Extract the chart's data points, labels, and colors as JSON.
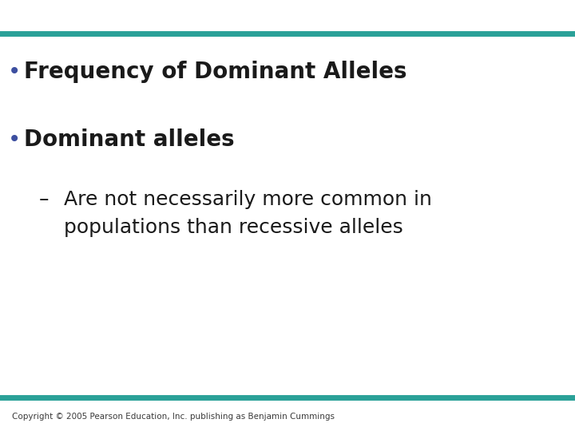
{
  "background_color": "#ffffff",
  "top_bar_color": "#2aa198",
  "bottom_bar_color": "#2aa198",
  "bullet1": "Frequency of Dominant Alleles",
  "bullet2": "Dominant alleles",
  "sub_bullet_line1": "Are not necessarily more common in",
  "sub_bullet_line2": "populations than recessive alleles",
  "bullet_color": "#1a1a1a",
  "bullet_dot_color": "#3d4fa0",
  "bullet_fontsize": 20,
  "sub_bullet_fontsize": 18,
  "copyright_text": "Copyright © 2005 Pearson Education, Inc. publishing as Benjamin Cummings",
  "copyright_fontsize": 7.5,
  "copyright_color": "#3a3a3a"
}
